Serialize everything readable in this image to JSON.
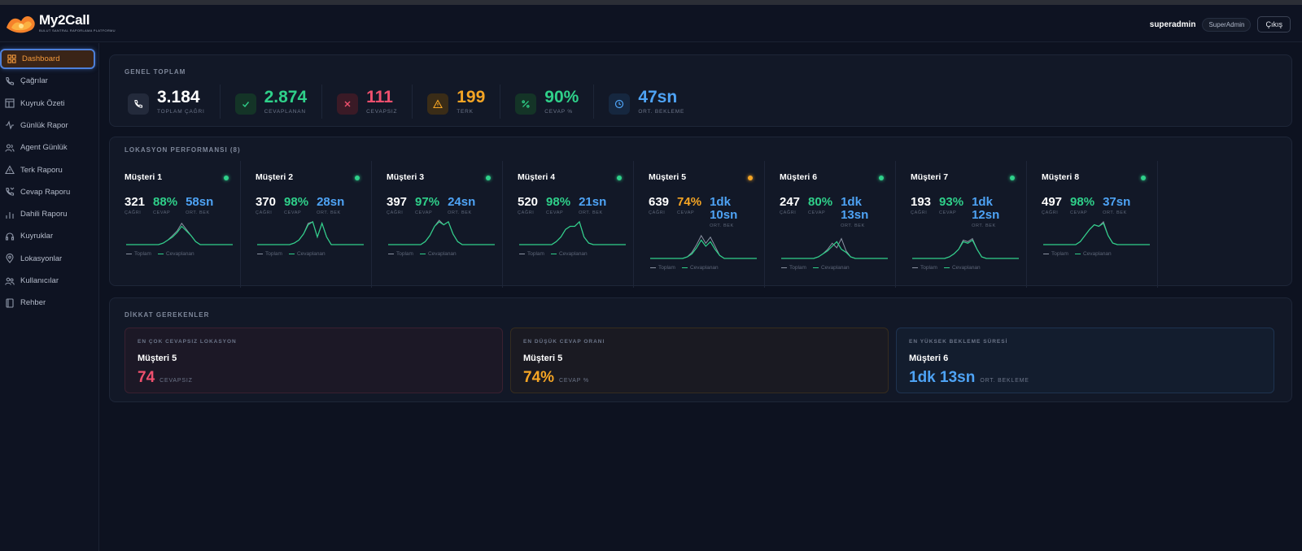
{
  "app": {
    "title": "My2Call",
    "subtitle": "Bulut Santral Raporlama Platformu"
  },
  "header": {
    "username": "superadmin",
    "role": "SuperAdmin",
    "logout_label": "Çıkış"
  },
  "sidebar": {
    "items": [
      {
        "label": "Dashboard",
        "icon": "grid-icon",
        "active": true
      },
      {
        "label": "Çağrılar",
        "icon": "phone-icon"
      },
      {
        "label": "Kuyruk Özeti",
        "icon": "layout-icon"
      },
      {
        "label": "Günlük Rapor",
        "icon": "activity-icon"
      },
      {
        "label": "Agent Günlük",
        "icon": "users-icon"
      },
      {
        "label": "Terk Raporu",
        "icon": "warning-icon"
      },
      {
        "label": "Cevap Raporu",
        "icon": "phone-answer-icon"
      },
      {
        "label": "Dahili Raporu",
        "icon": "bar-chart-icon"
      },
      {
        "label": "Kuyruklar",
        "icon": "headset-icon"
      },
      {
        "label": "Lokasyonlar",
        "icon": "map-pin-icon"
      },
      {
        "label": "Kullanıcılar",
        "icon": "user-group-icon"
      },
      {
        "label": "Rehber",
        "icon": "book-icon"
      }
    ]
  },
  "overview": {
    "title": "GENEL TOPLAM",
    "stats": [
      {
        "value": "3.184",
        "label": "TOPLAM ÇAĞRI",
        "color": "#ffffff",
        "icon": "phone-icon",
        "bg": "#232a3b"
      },
      {
        "value": "2.874",
        "label": "CEVAPLANAN",
        "color": "#2fd08a",
        "icon": "check-icon",
        "bg": "#143427"
      },
      {
        "value": "111",
        "label": "CEVAPSIZ",
        "color": "#f0506e",
        "icon": "x-icon",
        "bg": "#3a1a26"
      },
      {
        "value": "199",
        "label": "TERK",
        "color": "#f5a524",
        "icon": "warning-icon",
        "bg": "#3a2c17"
      },
      {
        "value": "90%",
        "label": "CEVAP %",
        "color": "#2fd08a",
        "icon": "percent-icon",
        "bg": "#143427"
      },
      {
        "value": "47sn",
        "label": "ORT. BEKLEME",
        "color": "#4ea3f5",
        "icon": "clock-icon",
        "bg": "#16273f"
      }
    ]
  },
  "locations": {
    "title": "LOKASYON PERFORMANSI (8)",
    "legend_total": "Toplam",
    "legend_answered": "Cevaplanan",
    "calls_label": "ÇAĞRI",
    "answer_label": "CEVAP",
    "wait_label": "ORT. BEK",
    "items": [
      {
        "name": "Müşteri 1",
        "calls": "321",
        "answer": "88%",
        "wait": "58sn",
        "status_color": "#2fd08a",
        "answer_color": "#2fd08a",
        "total_series": [
          0,
          0,
          0,
          0,
          0,
          0,
          0,
          0,
          1,
          3,
          6,
          9,
          14,
          10,
          6,
          2,
          0,
          0,
          0,
          0,
          0,
          0,
          0,
          0
        ],
        "answered_series": [
          0,
          0,
          0,
          0,
          0,
          0,
          0,
          0,
          1,
          3,
          5,
          8,
          12,
          9,
          6,
          2,
          0,
          0,
          0,
          0,
          0,
          0,
          0,
          0
        ]
      },
      {
        "name": "Müşteri 2",
        "calls": "370",
        "answer": "98%",
        "wait": "28sn",
        "status_color": "#2fd08a",
        "answer_color": "#2fd08a",
        "total_series": [
          0,
          0,
          0,
          0,
          0,
          0,
          0,
          0,
          1,
          3,
          7,
          14,
          15,
          5,
          14,
          5,
          0,
          0,
          0,
          0,
          0,
          0,
          0,
          0
        ],
        "answered_series": [
          0,
          0,
          0,
          0,
          0,
          0,
          0,
          0,
          1,
          3,
          7,
          13,
          15,
          5,
          14,
          5,
          0,
          0,
          0,
          0,
          0,
          0,
          0,
          0
        ]
      },
      {
        "name": "Müşteri 3",
        "calls": "397",
        "answer": "97%",
        "wait": "24sn",
        "status_color": "#2fd08a",
        "answer_color": "#2fd08a",
        "total_series": [
          0,
          0,
          0,
          0,
          0,
          0,
          0,
          0,
          2,
          6,
          12,
          16,
          13,
          15,
          7,
          2,
          0,
          0,
          0,
          0,
          0,
          0,
          0,
          0
        ],
        "answered_series": [
          0,
          0,
          0,
          0,
          0,
          0,
          0,
          0,
          2,
          6,
          12,
          15,
          13,
          15,
          7,
          2,
          0,
          0,
          0,
          0,
          0,
          0,
          0,
          0
        ]
      },
      {
        "name": "Müşteri 4",
        "calls": "520",
        "answer": "98%",
        "wait": "21sn",
        "status_color": "#2fd08a",
        "answer_color": "#2fd08a",
        "total_series": [
          0,
          0,
          0,
          0,
          0,
          0,
          0,
          0,
          2,
          5,
          10,
          12,
          12,
          15,
          5,
          1,
          0,
          0,
          0,
          0,
          0,
          0,
          0,
          0
        ],
        "answered_series": [
          0,
          0,
          0,
          0,
          0,
          0,
          0,
          0,
          2,
          5,
          10,
          12,
          12,
          15,
          5,
          1,
          0,
          0,
          0,
          0,
          0,
          0,
          0,
          0
        ]
      },
      {
        "name": "Müşteri 5",
        "calls": "639",
        "answer": "74%",
        "wait": "1dk 10sn",
        "status_color": "#f5a524",
        "answer_color": "#f5a524",
        "total_series": [
          0,
          0,
          0,
          0,
          0,
          0,
          0,
          0,
          1,
          4,
          9,
          15,
          10,
          14,
          8,
          2,
          0,
          0,
          0,
          0,
          0,
          0,
          0,
          0
        ],
        "answered_series": [
          0,
          0,
          0,
          0,
          0,
          0,
          0,
          0,
          1,
          3,
          7,
          12,
          8,
          11,
          6,
          2,
          0,
          0,
          0,
          0,
          0,
          0,
          0,
          0
        ]
      },
      {
        "name": "Müşteri 6",
        "calls": "247",
        "answer": "80%",
        "wait": "1dk 13sn",
        "status_color": "#2fd08a",
        "answer_color": "#2fd08a",
        "total_series": [
          0,
          0,
          0,
          0,
          0,
          0,
          0,
          0,
          1,
          3,
          6,
          10,
          7,
          13,
          5,
          1,
          0,
          0,
          0,
          0,
          0,
          0,
          0,
          0
        ],
        "answered_series": [
          0,
          0,
          0,
          0,
          0,
          0,
          0,
          0,
          1,
          3,
          5,
          8,
          11,
          6,
          4,
          1,
          0,
          0,
          0,
          0,
          0,
          0,
          0,
          0
        ]
      },
      {
        "name": "Müşteri 7",
        "calls": "193",
        "answer": "93%",
        "wait": "1dk 12sn",
        "status_color": "#2fd08a",
        "answer_color": "#2fd08a",
        "total_series": [
          0,
          0,
          0,
          0,
          0,
          0,
          0,
          0,
          1,
          3,
          6,
          12,
          11,
          13,
          6,
          1,
          0,
          0,
          0,
          0,
          0,
          0,
          0,
          0
        ],
        "answered_series": [
          0,
          0,
          0,
          0,
          0,
          0,
          0,
          0,
          1,
          3,
          6,
          11,
          10,
          12,
          6,
          1,
          0,
          0,
          0,
          0,
          0,
          0,
          0,
          0
        ]
      },
      {
        "name": "Müşteri 8",
        "calls": "497",
        "answer": "98%",
        "wait": "37sn",
        "status_color": "#2fd08a",
        "answer_color": "#2fd08a",
        "total_series": [
          0,
          0,
          0,
          0,
          0,
          0,
          0,
          0,
          2,
          6,
          10,
          13,
          12,
          15,
          6,
          1,
          0,
          0,
          0,
          0,
          0,
          0,
          0,
          0
        ],
        "answered_series": [
          0,
          0,
          0,
          0,
          0,
          0,
          0,
          0,
          2,
          6,
          10,
          13,
          12,
          14,
          6,
          1,
          0,
          0,
          0,
          0,
          0,
          0,
          0,
          0
        ]
      }
    ]
  },
  "attention": {
    "title": "DİKKAT GEREKENLER",
    "cards": [
      {
        "label": "EN ÇOK CEVAPSIZ LOKASYON",
        "name": "Müşteri 5",
        "value": "74",
        "unit": "CEVAPSIZ",
        "color": "#f0506e",
        "bg": "#1c1826",
        "border": "#3a2030"
      },
      {
        "label": "EN DÜŞÜK CEVAP ORANI",
        "name": "Müşteri 5",
        "value": "74%",
        "unit": "CEVAP %",
        "color": "#f5a524",
        "bg": "#1a1a22",
        "border": "#362c1e"
      },
      {
        "label": "EN YÜKSEK BEKLEME SÜRESİ",
        "name": "Müşteri 6",
        "value": "1dk 13sn",
        "unit": "ORT. BEKLEME",
        "color": "#4ea3f5",
        "bg": "#131d2e",
        "border": "#1e3350"
      }
    ]
  }
}
